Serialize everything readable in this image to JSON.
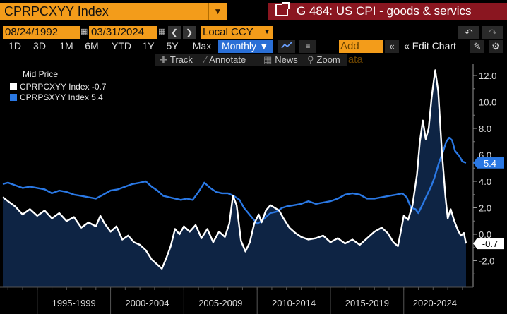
{
  "header": {
    "ticker": "CPRPCXYY Index",
    "title": "G 484: US CPI - goods & servics"
  },
  "controls": {
    "start_date": "08/24/1992",
    "end_date": "03/31/2024",
    "currency": "Local CCY",
    "ranges": [
      "1D",
      "3D",
      "1M",
      "6M",
      "YTD",
      "1Y",
      "5Y",
      "Max"
    ],
    "frequency": "Monthly",
    "add_data": "Add Data",
    "edit_chart": "Edit Chart"
  },
  "tools": [
    "Track",
    "Annotate",
    "News",
    "Zoom"
  ],
  "legend": {
    "header": "Mid Price",
    "items": [
      "CPRPCXYY Index -0.7",
      "CPRPSXYY Index 5.4"
    ]
  },
  "colors": {
    "series1": "#ffffff",
    "series2": "#2a78e4",
    "area": "#0e2444",
    "ticker_bg": "#f39c1a",
    "title_bg": "#8a1620"
  },
  "chart_data": {
    "type": "line",
    "x_range": [
      1992.65,
      2024.25
    ],
    "ylim": [
      -4,
      13
    ],
    "y_ticks": [
      "12.0",
      "10.0",
      "8.0",
      "6.0",
      "4.0",
      "2.0",
      "0.0",
      "-2.0"
    ],
    "y_tick_values": [
      12,
      10,
      8,
      6,
      4,
      2,
      0,
      -2
    ],
    "x_labels": [
      "1995-1999",
      "2000-2004",
      "2005-2009",
      "2010-2014",
      "2015-2019",
      "2020-2024"
    ],
    "series": [
      {
        "name": "CPRPCXYY Index",
        "color": "#ffffff",
        "last_label": "-0.7",
        "last_value": -0.7,
        "points": [
          [
            1992.65,
            2.8
          ],
          [
            1993.0,
            2.5
          ],
          [
            1993.5,
            2.1
          ],
          [
            1994.0,
            1.5
          ],
          [
            1994.5,
            1.9
          ],
          [
            1995.0,
            1.4
          ],
          [
            1995.5,
            1.8
          ],
          [
            1996.0,
            1.2
          ],
          [
            1996.5,
            1.6
          ],
          [
            1997.0,
            1.0
          ],
          [
            1997.5,
            1.3
          ],
          [
            1998.0,
            0.5
          ],
          [
            1998.5,
            0.9
          ],
          [
            1999.0,
            0.6
          ],
          [
            1999.3,
            1.4
          ],
          [
            1999.6,
            0.8
          ],
          [
            2000.0,
            0.2
          ],
          [
            2000.4,
            0.6
          ],
          [
            2000.8,
            -0.4
          ],
          [
            2001.2,
            -0.1
          ],
          [
            2001.6,
            -0.6
          ],
          [
            2002.0,
            -0.8
          ],
          [
            2002.4,
            -1.2
          ],
          [
            2002.8,
            -1.9
          ],
          [
            2003.2,
            -2.3
          ],
          [
            2003.5,
            -2.6
          ],
          [
            2003.8,
            -1.8
          ],
          [
            2004.1,
            -0.9
          ],
          [
            2004.4,
            0.4
          ],
          [
            2004.7,
            0.0
          ],
          [
            2005.0,
            0.6
          ],
          [
            2005.4,
            0.2
          ],
          [
            2005.8,
            0.7
          ],
          [
            2006.2,
            -0.3
          ],
          [
            2006.6,
            0.4
          ],
          [
            2007.0,
            -0.6
          ],
          [
            2007.4,
            0.2
          ],
          [
            2007.8,
            -0.2
          ],
          [
            2008.1,
            0.8
          ],
          [
            2008.35,
            2.9
          ],
          [
            2008.6,
            2.2
          ],
          [
            2008.9,
            -0.5
          ],
          [
            2009.2,
            -1.3
          ],
          [
            2009.5,
            -0.6
          ],
          [
            2009.8,
            0.8
          ],
          [
            2010.1,
            1.5
          ],
          [
            2010.3,
            0.9
          ],
          [
            2010.6,
            1.8
          ],
          [
            2010.9,
            2.2
          ],
          [
            2011.2,
            2.0
          ],
          [
            2011.5,
            1.8
          ],
          [
            2011.8,
            1.2
          ],
          [
            2012.2,
            0.5
          ],
          [
            2012.6,
            0.1
          ],
          [
            2013.0,
            -0.2
          ],
          [
            2013.5,
            -0.4
          ],
          [
            2014.0,
            -0.3
          ],
          [
            2014.5,
            -0.1
          ],
          [
            2015.0,
            -0.6
          ],
          [
            2015.5,
            -0.3
          ],
          [
            2016.0,
            -0.7
          ],
          [
            2016.5,
            -0.4
          ],
          [
            2017.0,
            -0.8
          ],
          [
            2017.5,
            -0.3
          ],
          [
            2018.0,
            0.2
          ],
          [
            2018.5,
            0.5
          ],
          [
            2018.9,
            0.1
          ],
          [
            2019.3,
            -0.6
          ],
          [
            2019.6,
            -0.9
          ],
          [
            2019.8,
            0.2
          ],
          [
            2020.0,
            1.4
          ],
          [
            2020.3,
            1.1
          ],
          [
            2020.6,
            2.2
          ],
          [
            2020.9,
            4.5
          ],
          [
            2021.1,
            7.0
          ],
          [
            2021.3,
            8.6
          ],
          [
            2021.5,
            7.2
          ],
          [
            2021.7,
            8.0
          ],
          [
            2021.9,
            10.3
          ],
          [
            2022.05,
            11.6
          ],
          [
            2022.15,
            12.4
          ],
          [
            2022.35,
            10.8
          ],
          [
            2022.6,
            6.3
          ],
          [
            2022.85,
            2.8
          ],
          [
            2023.0,
            1.2
          ],
          [
            2023.2,
            1.9
          ],
          [
            2023.45,
            1.0
          ],
          [
            2023.7,
            0.3
          ],
          [
            2023.9,
            -0.1
          ],
          [
            2024.1,
            0.1
          ],
          [
            2024.25,
            -0.7
          ]
        ]
      },
      {
        "name": "CPRPSXYY Index",
        "color": "#2a78e4",
        "last_label": "5.4",
        "last_value": 5.4,
        "points": [
          [
            1992.65,
            3.8
          ],
          [
            1993.0,
            3.9
          ],
          [
            1993.5,
            3.7
          ],
          [
            1994.0,
            3.5
          ],
          [
            1994.5,
            3.6
          ],
          [
            1995.0,
            3.5
          ],
          [
            1995.5,
            3.4
          ],
          [
            1996.0,
            3.1
          ],
          [
            1996.5,
            3.3
          ],
          [
            1997.0,
            3.2
          ],
          [
            1997.5,
            3.0
          ],
          [
            1998.0,
            2.9
          ],
          [
            1998.5,
            2.8
          ],
          [
            1999.0,
            2.7
          ],
          [
            1999.5,
            3.0
          ],
          [
            2000.0,
            3.3
          ],
          [
            2000.5,
            3.4
          ],
          [
            2001.0,
            3.6
          ],
          [
            2001.5,
            3.8
          ],
          [
            2002.0,
            3.9
          ],
          [
            2002.4,
            4.0
          ],
          [
            2002.8,
            3.6
          ],
          [
            2003.2,
            3.3
          ],
          [
            2003.6,
            2.9
          ],
          [
            2004.0,
            2.8
          ],
          [
            2004.4,
            2.7
          ],
          [
            2004.8,
            2.6
          ],
          [
            2005.2,
            2.7
          ],
          [
            2005.6,
            2.6
          ],
          [
            2006.0,
            3.2
          ],
          [
            2006.4,
            3.9
          ],
          [
            2006.8,
            3.5
          ],
          [
            2007.2,
            3.2
          ],
          [
            2007.6,
            3.1
          ],
          [
            2008.0,
            3.1
          ],
          [
            2008.4,
            2.9
          ],
          [
            2008.8,
            2.6
          ],
          [
            2009.1,
            2.0
          ],
          [
            2009.4,
            1.6
          ],
          [
            2009.7,
            1.2
          ],
          [
            2010.0,
            0.8
          ],
          [
            2010.3,
            1.0
          ],
          [
            2010.6,
            1.3
          ],
          [
            2010.9,
            1.6
          ],
          [
            2011.3,
            1.7
          ],
          [
            2011.7,
            2.0
          ],
          [
            2012.0,
            2.1
          ],
          [
            2012.5,
            2.2
          ],
          [
            2013.0,
            2.3
          ],
          [
            2013.5,
            2.5
          ],
          [
            2014.0,
            2.3
          ],
          [
            2014.5,
            2.4
          ],
          [
            2015.0,
            2.5
          ],
          [
            2015.5,
            2.7
          ],
          [
            2016.0,
            3.0
          ],
          [
            2016.5,
            3.1
          ],
          [
            2017.0,
            3.0
          ],
          [
            2017.5,
            2.7
          ],
          [
            2018.0,
            2.7
          ],
          [
            2018.5,
            2.8
          ],
          [
            2019.0,
            2.9
          ],
          [
            2019.5,
            3.0
          ],
          [
            2019.9,
            3.1
          ],
          [
            2020.2,
            2.8
          ],
          [
            2020.5,
            2.0
          ],
          [
            2020.8,
            1.9
          ],
          [
            2021.0,
            1.6
          ],
          [
            2021.3,
            2.3
          ],
          [
            2021.6,
            3.0
          ],
          [
            2021.9,
            3.7
          ],
          [
            2022.1,
            4.3
          ],
          [
            2022.4,
            5.4
          ],
          [
            2022.7,
            6.3
          ],
          [
            2022.9,
            7.0
          ],
          [
            2023.1,
            7.3
          ],
          [
            2023.3,
            7.1
          ],
          [
            2023.5,
            6.3
          ],
          [
            2023.8,
            5.9
          ],
          [
            2024.0,
            5.5
          ],
          [
            2024.25,
            5.4
          ]
        ]
      }
    ]
  }
}
